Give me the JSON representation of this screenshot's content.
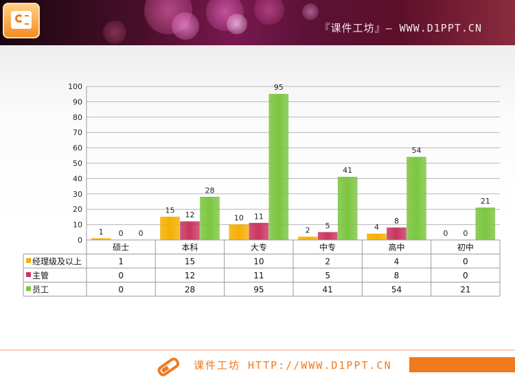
{
  "header": {
    "title": "『课件工坊』— WWW.D1PPT.CN",
    "logo_icon": "presentation-icon"
  },
  "footer": {
    "text": "课件工坊 HTTP://WWW.D1PPT.CN",
    "icon": "pencil-icon",
    "accent": "#f07a1e"
  },
  "chart_data": {
    "type": "bar",
    "categories": [
      "硕士",
      "本科",
      "大专",
      "中专",
      "高中",
      "初中"
    ],
    "series": [
      {
        "name": "经理级及以上",
        "values": [
          1,
          15,
          10,
          2,
          4,
          0
        ],
        "color": "#f5b000"
      },
      {
        "name": "主管",
        "values": [
          0,
          12,
          11,
          5,
          8,
          0
        ],
        "color": "#c8365e"
      },
      {
        "name": "员工",
        "values": [
          0,
          28,
          95,
          41,
          54,
          21
        ],
        "color": "#7cc540"
      }
    ],
    "ylim": [
      0,
      100
    ],
    "yticks": [
      0,
      10,
      20,
      30,
      40,
      50,
      60,
      70,
      80,
      90,
      100
    ],
    "grid": true,
    "data_table": true,
    "title": "",
    "xlabel": "",
    "ylabel": ""
  }
}
